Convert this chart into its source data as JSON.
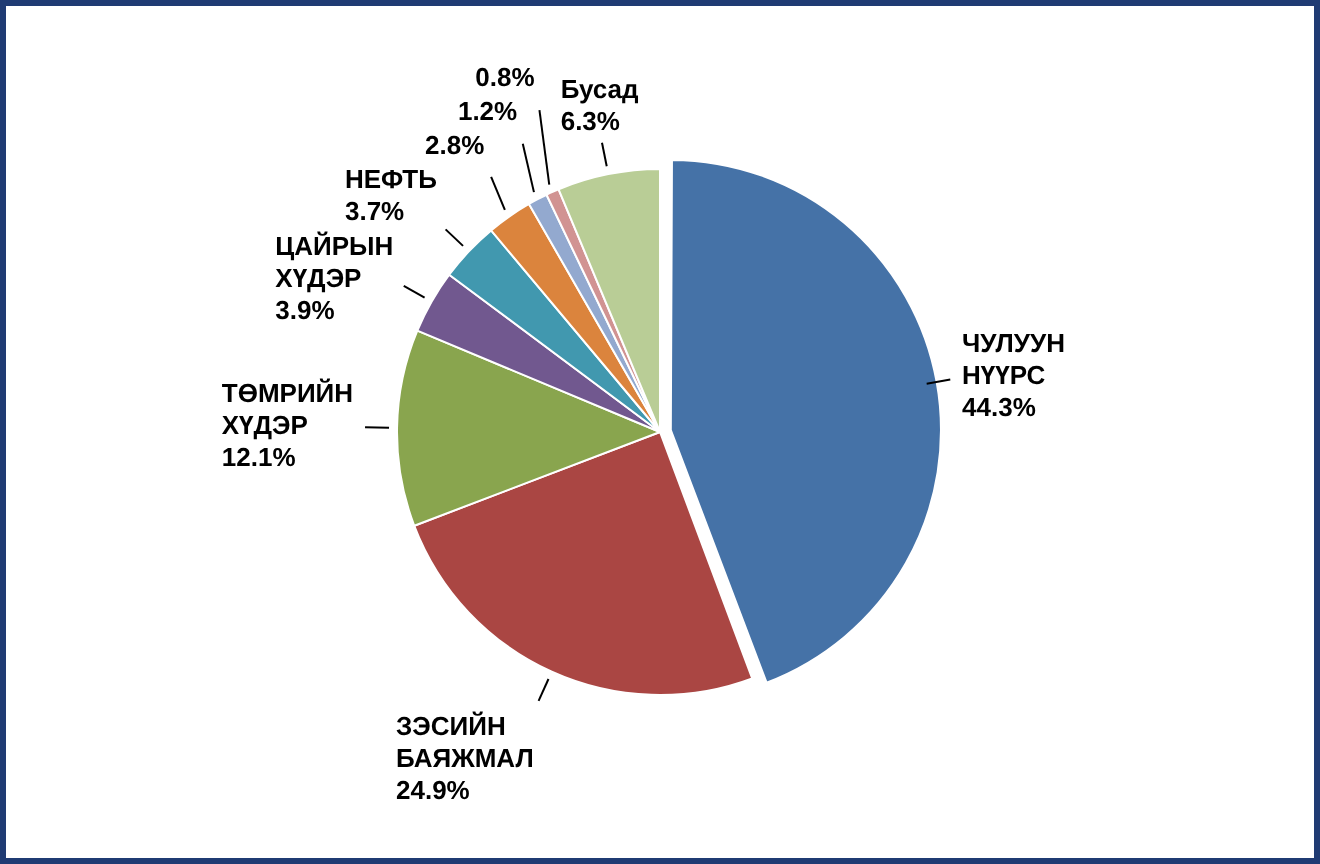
{
  "chart_data": {
    "type": "pie",
    "categories": [
      "ЧУЛУУН НҮҮРС",
      "ЗЭСИЙН БАЯЖМАЛ",
      "ТӨМРИЙН ХҮДЭР",
      "ЦАЙРЫН ХҮДЭР",
      "НЕФТЬ",
      null,
      null,
      null,
      "Бусад"
    ],
    "values": [
      44.3,
      24.9,
      12.1,
      3.9,
      3.7,
      2.8,
      1.2,
      0.8,
      6.3
    ],
    "value_labels": [
      "44.3%",
      "24.9%",
      "12.1%",
      "3.9%",
      "3.7%",
      "2.8%",
      "1.2%",
      "0.8%",
      "6.3%"
    ],
    "colors": [
      "#4572a7",
      "#aa4643",
      "#89a54e",
      "#71588f",
      "#4198af",
      "#db843d",
      "#93a9cf",
      "#d19392",
      "#b9cd96"
    ],
    "legend": false
  }
}
